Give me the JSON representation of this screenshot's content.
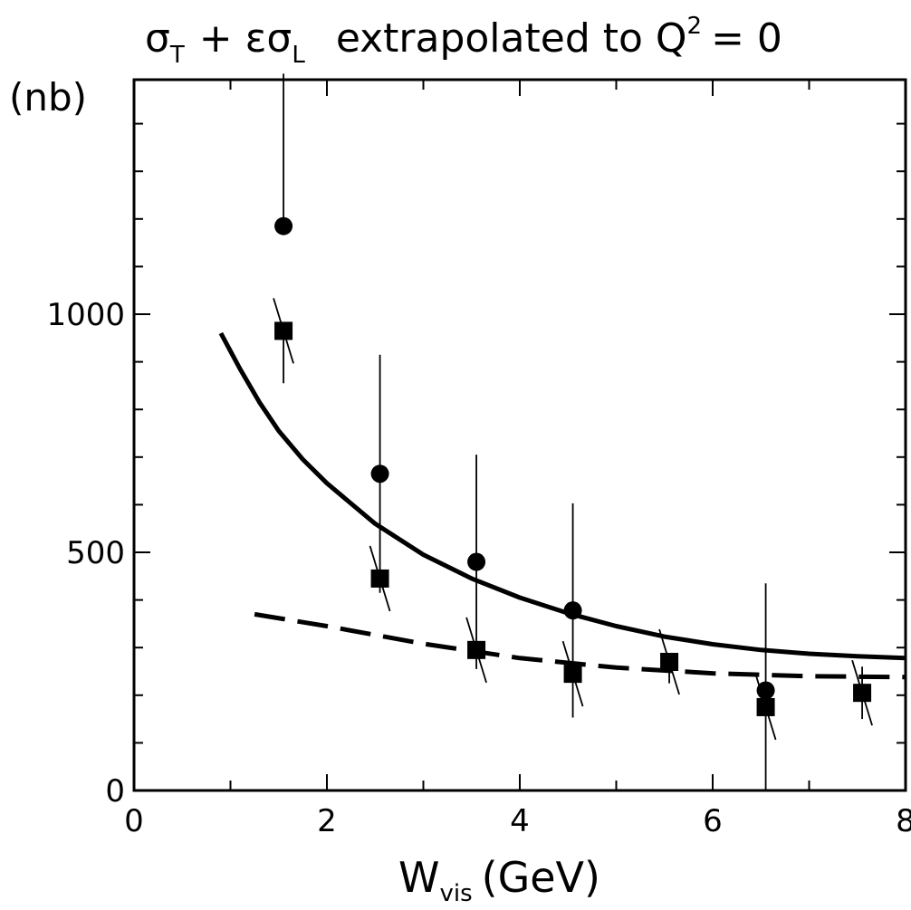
{
  "chart_data": {
    "type": "scatter",
    "title": {
      "sigma": "σ",
      "sub_T": "T",
      "plus_eps": "+ ε",
      "sigma2": "σ",
      "sub_L": "L",
      "text": "extrapolated to Q",
      "sup": "2",
      "eq": "= 0"
    },
    "ylabel": "(nb)",
    "xlabel": {
      "main": "W",
      "sub": "vis",
      "unit": "(GeV)"
    },
    "xlim": [
      0,
      8
    ],
    "ylim": [
      0,
      1500
    ],
    "x_ticks": [
      "0",
      "2",
      "4",
      "6",
      "8"
    ],
    "y_ticks": [
      "0",
      "500",
      "1000"
    ],
    "series": [
      {
        "marker": "circle",
        "points": [
          {
            "x": 1.55,
            "y": 1185,
            "err_lo": 0,
            "err_hi": 320
          },
          {
            "x": 2.55,
            "y": 665,
            "err_lo": 250,
            "err_hi": 250
          },
          {
            "x": 3.55,
            "y": 480,
            "err_lo": 225,
            "err_hi": 225
          },
          {
            "x": 4.55,
            "y": 378,
            "err_lo": 225,
            "err_hi": 225
          },
          {
            "x": 6.55,
            "y": 210,
            "err_lo": 210,
            "err_hi": 225
          }
        ]
      },
      {
        "marker": "square",
        "points": [
          {
            "x": 1.55,
            "y": 965,
            "err_lo": 110,
            "err_hi": 0
          },
          {
            "x": 2.55,
            "y": 445,
            "err_lo": 0,
            "err_hi": 0
          },
          {
            "x": 3.55,
            "y": 295,
            "err_lo": 0,
            "err_hi": 0
          },
          {
            "x": 4.55,
            "y": 245,
            "err_lo": 0,
            "err_hi": 0
          },
          {
            "x": 5.55,
            "y": 270,
            "err_lo": 45,
            "err_hi": 0
          },
          {
            "x": 6.55,
            "y": 175,
            "err_lo": 0,
            "err_hi": 0
          },
          {
            "x": 7.55,
            "y": 205,
            "err_lo": 55,
            "err_hi": 55
          }
        ]
      }
    ],
    "curves": [
      {
        "style": "solid",
        "x": [
          0.9,
          1.1,
          1.3,
          1.5,
          1.75,
          2.0,
          2.5,
          3.0,
          3.5,
          4.0,
          4.5,
          5.0,
          5.5,
          6.0,
          6.5,
          7.0,
          7.5,
          8.0
        ],
        "y": [
          960,
          885,
          815,
          755,
          695,
          645,
          560,
          495,
          445,
          405,
          372,
          345,
          323,
          307,
          295,
          287,
          282,
          278
        ]
      },
      {
        "style": "dashed",
        "x": [
          1.25,
          2.0,
          3.0,
          4.0,
          5.0,
          6.0,
          7.0,
          8.0
        ],
        "y": [
          370,
          345,
          308,
          278,
          258,
          246,
          240,
          238
        ]
      }
    ]
  }
}
